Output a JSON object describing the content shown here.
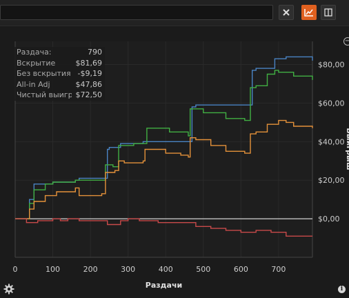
{
  "toolbar": {
    "search_value": "",
    "icons": {
      "close": "close-icon",
      "chart": "chart-line-icon",
      "panel": "split-panel-icon"
    }
  },
  "stats": [
    {
      "label": "Раздача:",
      "value": "790"
    },
    {
      "label": "Вскрытие",
      "value": "$81,69"
    },
    {
      "label": "Без вскрытия",
      "value": "-$9,19"
    },
    {
      "label": "All-in Adj",
      "value": "$47,86"
    },
    {
      "label": "Чистый выигр",
      "value": "$72,50"
    }
  ],
  "chart_data": {
    "type": "line",
    "xlabel": "Раздачи",
    "ylabel": "Выигрыш",
    "xlim": [
      0,
      790
    ],
    "ylim": [
      -20,
      92
    ],
    "x_ticks": [
      0,
      100,
      200,
      300,
      400,
      500,
      600,
      700
    ],
    "y_ticks": [
      0,
      20,
      40,
      60,
      80
    ],
    "y_tick_labels": [
      "$0,00",
      "$20,00",
      "$40,00",
      "$60,00",
      "$80,00"
    ],
    "zero_line": true,
    "series": [
      {
        "color": "#4a84c4",
        "points": [
          [
            0,
            0
          ],
          [
            30,
            0
          ],
          [
            38,
            10
          ],
          [
            50,
            18
          ],
          [
            100,
            19
          ],
          [
            160,
            20
          ],
          [
            170,
            21
          ],
          [
            230,
            21
          ],
          [
            245,
            36
          ],
          [
            250,
            37
          ],
          [
            280,
            39
          ],
          [
            340,
            40
          ],
          [
            350,
            40
          ],
          [
            460,
            40
          ],
          [
            470,
            58
          ],
          [
            480,
            59
          ],
          [
            560,
            59
          ],
          [
            620,
            59
          ],
          [
            630,
            77
          ],
          [
            640,
            78
          ],
          [
            690,
            83
          ],
          [
            720,
            84
          ],
          [
            790,
            82
          ]
        ]
      },
      {
        "color": "#41b043",
        "points": [
          [
            0,
            0
          ],
          [
            20,
            0
          ],
          [
            38,
            8
          ],
          [
            50,
            15
          ],
          [
            80,
            18
          ],
          [
            100,
            19
          ],
          [
            160,
            20
          ],
          [
            170,
            20
          ],
          [
            200,
            20
          ],
          [
            230,
            20
          ],
          [
            240,
            28
          ],
          [
            260,
            27
          ],
          [
            275,
            38
          ],
          [
            290,
            38
          ],
          [
            315,
            39
          ],
          [
            345,
            39
          ],
          [
            350,
            47
          ],
          [
            380,
            47
          ],
          [
            410,
            45
          ],
          [
            460,
            43
          ],
          [
            465,
            57
          ],
          [
            480,
            57
          ],
          [
            500,
            55
          ],
          [
            520,
            55
          ],
          [
            560,
            52
          ],
          [
            610,
            51
          ],
          [
            625,
            68
          ],
          [
            640,
            69
          ],
          [
            670,
            75
          ],
          [
            690,
            77
          ],
          [
            700,
            76
          ],
          [
            740,
            74
          ],
          [
            790,
            72
          ]
        ]
      },
      {
        "color": "#e5923a",
        "points": [
          [
            0,
            0
          ],
          [
            38,
            5
          ],
          [
            50,
            9
          ],
          [
            80,
            12
          ],
          [
            110,
            14
          ],
          [
            160,
            16
          ],
          [
            170,
            12
          ],
          [
            230,
            13
          ],
          [
            240,
            24
          ],
          [
            265,
            25
          ],
          [
            275,
            30
          ],
          [
            290,
            29
          ],
          [
            330,
            29
          ],
          [
            340,
            30
          ],
          [
            345,
            36
          ],
          [
            380,
            36
          ],
          [
            400,
            34
          ],
          [
            440,
            33
          ],
          [
            460,
            32
          ],
          [
            465,
            42
          ],
          [
            480,
            41
          ],
          [
            520,
            38
          ],
          [
            560,
            35
          ],
          [
            610,
            34
          ],
          [
            625,
            44
          ],
          [
            640,
            45
          ],
          [
            670,
            49
          ],
          [
            700,
            51
          ],
          [
            720,
            50
          ],
          [
            740,
            48
          ],
          [
            790,
            47
          ]
        ]
      },
      {
        "color": "#c94a4a",
        "points": [
          [
            0,
            0
          ],
          [
            30,
            -2
          ],
          [
            60,
            -1
          ],
          [
            100,
            0
          ],
          [
            120,
            -1
          ],
          [
            140,
            0
          ],
          [
            170,
            -1
          ],
          [
            220,
            -1
          ],
          [
            245,
            -3
          ],
          [
            280,
            -1
          ],
          [
            300,
            0
          ],
          [
            330,
            -1
          ],
          [
            380,
            -2
          ],
          [
            440,
            -2
          ],
          [
            480,
            -4
          ],
          [
            520,
            -5
          ],
          [
            560,
            -6
          ],
          [
            600,
            -7
          ],
          [
            640,
            -6
          ],
          [
            680,
            -7
          ],
          [
            720,
            -9
          ],
          [
            760,
            -9
          ],
          [
            790,
            -9
          ]
        ]
      }
    ]
  }
}
